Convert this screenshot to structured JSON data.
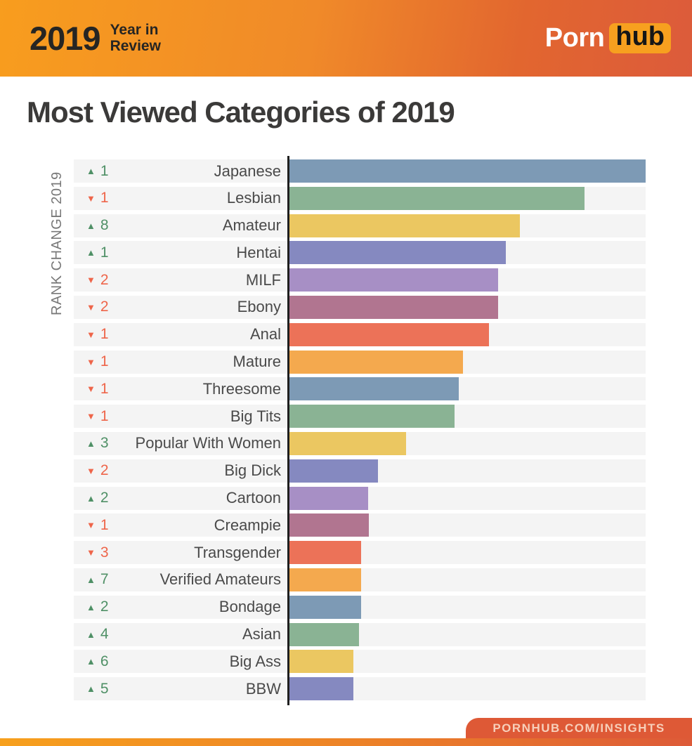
{
  "header": {
    "year": "2019",
    "subtitle_line1": "Year in",
    "subtitle_line2": "Review",
    "logo_porn": "Porn",
    "logo_hub": "hub"
  },
  "title": "Most Viewed Categories of 2019",
  "chart": {
    "axis_label": "RANK CHANGE 2019",
    "rank_up_color": "#4f9066",
    "rank_down_color": "#ee654a",
    "up_icon": "▲",
    "down_icon": "▼",
    "rows": [
      {
        "category": "Japanese",
        "change_dir": "up",
        "change_amount": "1",
        "bar_pct": 100.0,
        "bar_color": "#7d9ab5"
      },
      {
        "category": "Lesbian",
        "change_dir": "down",
        "change_amount": "1",
        "bar_pct": 82.8,
        "bar_color": "#8ab394"
      },
      {
        "category": "Amateur",
        "change_dir": "up",
        "change_amount": "8",
        "bar_pct": 64.7,
        "bar_color": "#ebc761"
      },
      {
        "category": "Hentai",
        "change_dir": "up",
        "change_amount": "1",
        "bar_pct": 60.7,
        "bar_color": "#8589c0"
      },
      {
        "category": "MILF",
        "change_dir": "down",
        "change_amount": "2",
        "bar_pct": 58.6,
        "bar_color": "#a78fc5"
      },
      {
        "category": "Ebony",
        "change_dir": "down",
        "change_amount": "2",
        "bar_pct": 58.6,
        "bar_color": "#b17590"
      },
      {
        "category": "Anal",
        "change_dir": "down",
        "change_amount": "1",
        "bar_pct": 56.0,
        "bar_color": "#ec7258"
      },
      {
        "category": "Mature",
        "change_dir": "down",
        "change_amount": "1",
        "bar_pct": 48.7,
        "bar_color": "#f4a94e"
      },
      {
        "category": "Threesome",
        "change_dir": "down",
        "change_amount": "1",
        "bar_pct": 47.5,
        "bar_color": "#7d9ab5"
      },
      {
        "category": "Big Tits",
        "change_dir": "down",
        "change_amount": "1",
        "bar_pct": 46.4,
        "bar_color": "#8ab394"
      },
      {
        "category": "Popular With Women",
        "change_dir": "up",
        "change_amount": "3",
        "bar_pct": 32.7,
        "bar_color": "#ebc761"
      },
      {
        "category": "Big Dick",
        "change_dir": "down",
        "change_amount": "2",
        "bar_pct": 24.9,
        "bar_color": "#8589c0"
      },
      {
        "category": "Cartoon",
        "change_dir": "up",
        "change_amount": "2",
        "bar_pct": 22.1,
        "bar_color": "#a78fc5"
      },
      {
        "category": "Creampie",
        "change_dir": "down",
        "change_amount": "1",
        "bar_pct": 22.3,
        "bar_color": "#b17590"
      },
      {
        "category": "Transgender",
        "change_dir": "down",
        "change_amount": "3",
        "bar_pct": 20.1,
        "bar_color": "#ec7258"
      },
      {
        "category": "Verified Amateurs",
        "change_dir": "up",
        "change_amount": "7",
        "bar_pct": 20.1,
        "bar_color": "#f4a94e"
      },
      {
        "category": "Bondage",
        "change_dir": "up",
        "change_amount": "2",
        "bar_pct": 20.1,
        "bar_color": "#7d9ab5"
      },
      {
        "category": "Asian",
        "change_dir": "up",
        "change_amount": "4",
        "bar_pct": 19.5,
        "bar_color": "#8ab394"
      },
      {
        "category": "Big Ass",
        "change_dir": "up",
        "change_amount": "6",
        "bar_pct": 17.9,
        "bar_color": "#ebc761"
      },
      {
        "category": "BBW",
        "change_dir": "up",
        "change_amount": "5",
        "bar_pct": 17.9,
        "bar_color": "#8589c0"
      }
    ]
  },
  "footer": {
    "url": "PORNHUB.COM/INSIGHTS"
  },
  "colors": {
    "header_gradient_start": "#f89d1e",
    "header_gradient_end": "#dc5b3b",
    "logo_hub_badge": "#f7a01f",
    "row_background": "#f4f4f4",
    "axis_line": "#1f1f1f",
    "footer_badge": "#de5936",
    "title_text": "#3b3a39",
    "category_text": "#4a4a4a"
  },
  "chart_data": {
    "type": "bar",
    "orientation": "horizontal",
    "title": "Most Viewed Categories of 2019",
    "axis_label": "RANK CHANGE 2019",
    "value_axis_labeled": false,
    "note": "Bar lengths are relative; no numeric axis shown. Values are percent of the longest bar (Japanese = 100).",
    "categories": [
      "Japanese",
      "Lesbian",
      "Amateur",
      "Hentai",
      "MILF",
      "Ebony",
      "Anal",
      "Mature",
      "Threesome",
      "Big Tits",
      "Popular With Women",
      "Big Dick",
      "Cartoon",
      "Creampie",
      "Transgender",
      "Verified Amateurs",
      "Bondage",
      "Asian",
      "Big Ass",
      "BBW"
    ],
    "values_relative_pct": [
      100.0,
      82.8,
      64.7,
      60.7,
      58.6,
      58.6,
      56.0,
      48.7,
      47.5,
      46.4,
      32.7,
      24.9,
      22.1,
      22.3,
      20.1,
      20.1,
      20.1,
      19.5,
      17.9,
      17.9
    ],
    "rank_change_2019": [
      1,
      -1,
      8,
      1,
      -2,
      -2,
      -1,
      -1,
      -1,
      -1,
      3,
      -2,
      2,
      -1,
      -3,
      7,
      2,
      4,
      6,
      5
    ],
    "bar_colors": [
      "#7d9ab5",
      "#8ab394",
      "#ebc761",
      "#8589c0",
      "#a78fc5",
      "#b17590",
      "#ec7258",
      "#f4a94e",
      "#7d9ab5",
      "#8ab394",
      "#ebc761",
      "#8589c0",
      "#a78fc5",
      "#b17590",
      "#ec7258",
      "#f4a94e",
      "#7d9ab5",
      "#8ab394",
      "#ebc761",
      "#8589c0"
    ],
    "legend": false,
    "grid": false
  }
}
